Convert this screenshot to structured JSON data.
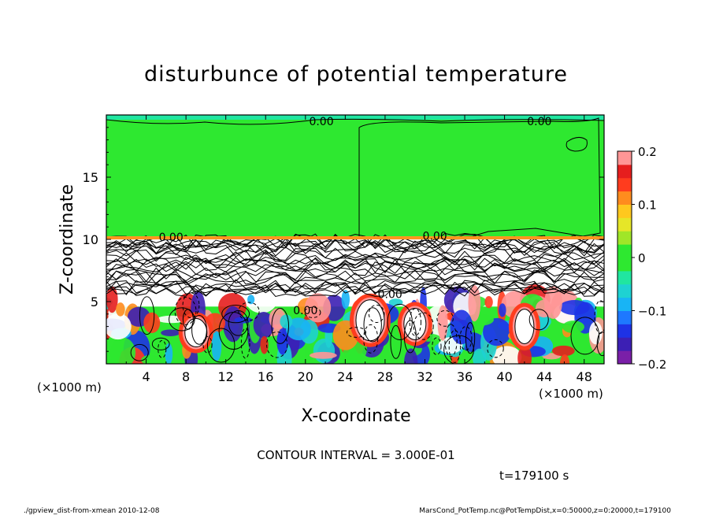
{
  "chart_data": {
    "type": "heatmap",
    "title": "disturbunce of potential temperature",
    "xlabel": "X-coordinate",
    "ylabel": "Z-coordinate",
    "x_unit_left": "(×1000 m)",
    "x_unit_right": "(×1000 m)",
    "xlim": [
      0,
      50
    ],
    "ylim": [
      0,
      20
    ],
    "x_ticks": [
      "4",
      "8",
      "12",
      "16",
      "20",
      "24",
      "28",
      "32",
      "36",
      "40",
      "44",
      "48"
    ],
    "x_tick_values": [
      4,
      8,
      12,
      16,
      20,
      24,
      28,
      32,
      36,
      40,
      44,
      48
    ],
    "y_ticks": [
      "5",
      "10",
      "15"
    ],
    "y_tick_values": [
      5,
      10,
      15
    ],
    "colorbar": {
      "range": [
        -0.2,
        0.2
      ],
      "ticks": [
        "0.2",
        "0.1",
        "0",
        "−0.1",
        "−0.2"
      ],
      "tick_values": [
        0.2,
        0.1,
        0,
        -0.1,
        -0.2
      ],
      "colors": [
        "#7a1fa8",
        "#3c1fb4",
        "#1e32e6",
        "#1e78ff",
        "#18b4f5",
        "#1ed2d2",
        "#20e6a0",
        "#2ee830",
        "#2ee830",
        "#a0e628",
        "#e6e628",
        "#ffc81e",
        "#ff8c1e",
        "#ff3c1e",
        "#e61e1e",
        "#ff9696"
      ]
    },
    "contour_labels": [
      "0.00",
      "0.00",
      "0.00",
      "0.00",
      "0.00",
      "0.00"
    ],
    "contour_interval_text": "CONTOUR INTERVAL = 3.000E-01",
    "time_text": "t=179100 s"
  },
  "footer": {
    "left": "./gpview_dist-from-xmean  2010-12-08",
    "right": "MarsCond_PotTemp.nc@PotTempDist,x=0:50000,z=0:20000,t=179100"
  }
}
